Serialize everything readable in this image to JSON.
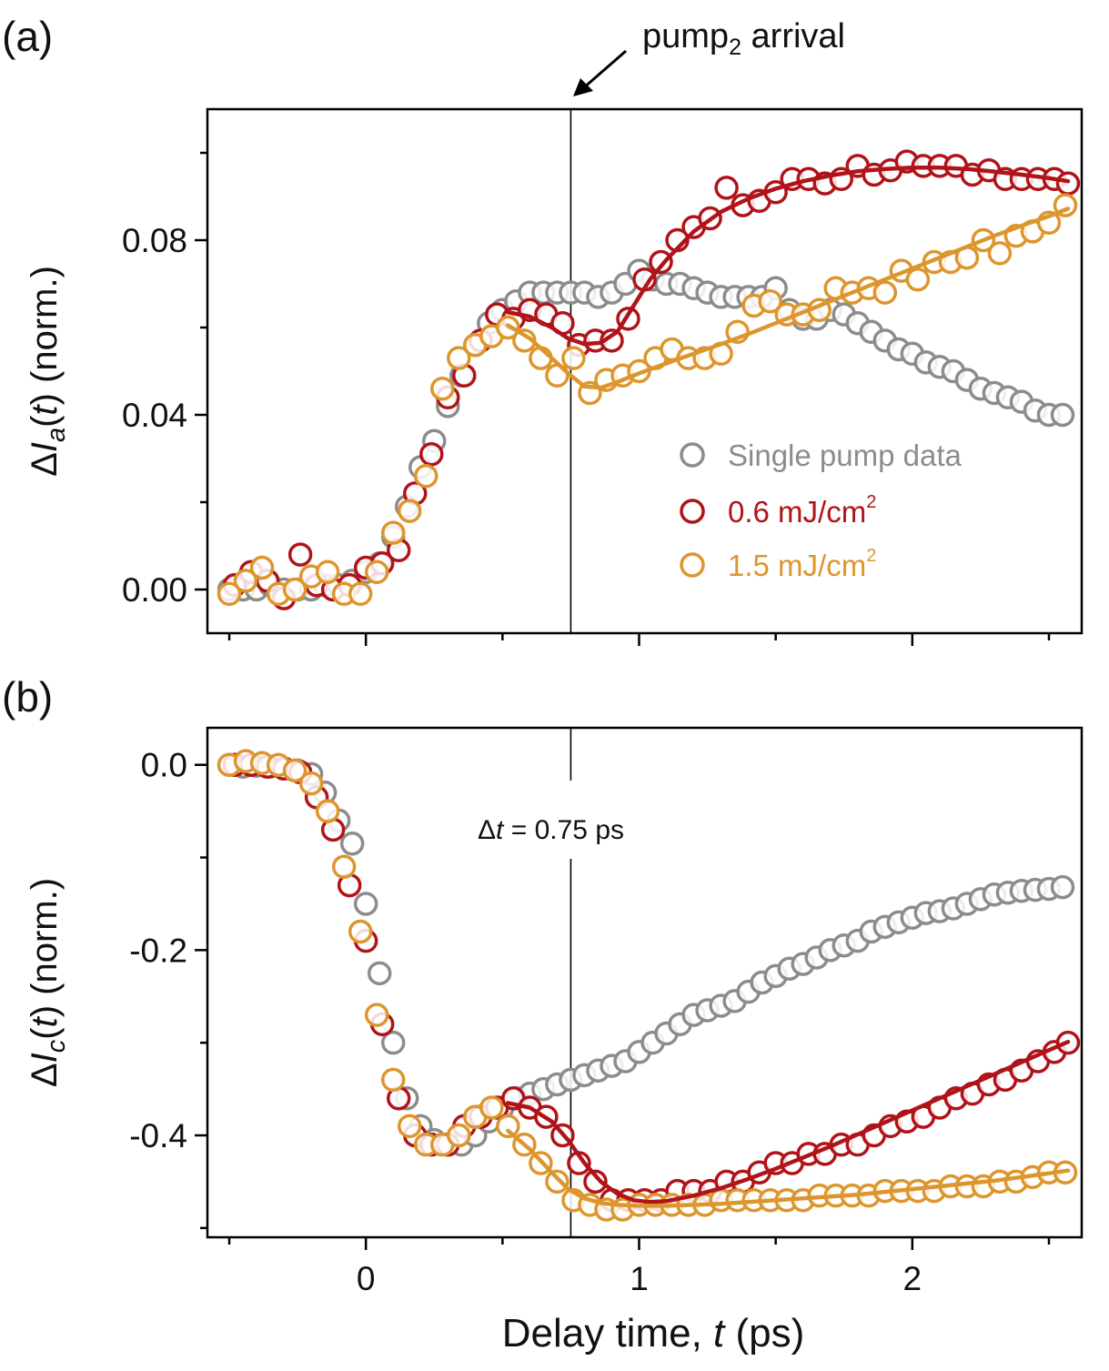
{
  "colors": {
    "single": "#8c8c8c",
    "low": "#b01318",
    "high": "#dc962d",
    "axis": "#000000"
  },
  "chart_data": [
    {
      "panel": "a",
      "type": "scatter",
      "panel_label": "(a)",
      "xlabel_prefix": "Delay time, ",
      "xlabel_var": "t",
      "xlabel_suffix": " (ps)",
      "ylabel_delta": "Δ",
      "ylabel_I": "I",
      "ylabel_sub": "a",
      "ylabel_arg_open": "(",
      "ylabel_arg_var": "t",
      "ylabel_arg_close": ")",
      "ylabel_suffix": " (norm.)",
      "xlim": [
        -0.58,
        2.62
      ],
      "ylim": [
        -0.01,
        0.11
      ],
      "yticks": [
        0.0,
        0.04,
        0.08
      ],
      "ytick_labels": [
        "0.00",
        "0.04",
        "0.08"
      ],
      "annotation": {
        "text": "pump",
        "sub": "2",
        "suffix": " arrival",
        "x": 0.75
      },
      "vline_x": 0.75,
      "legend": [
        {
          "label": "Single pump data",
          "color_key": "single"
        },
        {
          "label": "0.6 mJ/cm",
          "sup": "2",
          "color_key": "low"
        },
        {
          "label": "1.5 mJ/cm",
          "sup": "2",
          "color_key": "high"
        }
      ],
      "series": [
        {
          "name": "Single pump data",
          "color_key": "single",
          "x": [
            -0.5,
            -0.45,
            -0.4,
            -0.35,
            -0.3,
            -0.25,
            -0.2,
            -0.15,
            -0.1,
            -0.05,
            0.0,
            0.05,
            0.1,
            0.15,
            0.2,
            0.25,
            0.3,
            0.35,
            0.4,
            0.45,
            0.5,
            0.55,
            0.6,
            0.65,
            0.7,
            0.75,
            0.8,
            0.85,
            0.9,
            0.95,
            1.0,
            1.05,
            1.1,
            1.15,
            1.2,
            1.25,
            1.3,
            1.35,
            1.4,
            1.45,
            1.5,
            1.55,
            1.6,
            1.65,
            1.7,
            1.75,
            1.8,
            1.85,
            1.9,
            1.95,
            2.0,
            2.05,
            2.1,
            2.15,
            2.2,
            2.25,
            2.3,
            2.35,
            2.4,
            2.45,
            2.5,
            2.55
          ],
          "y": [
            0.0,
            0.0,
            0.0,
            0.001,
            0.0,
            0.0,
            0.0,
            0.001,
            0.001,
            0.002,
            0.004,
            0.006,
            0.012,
            0.019,
            0.028,
            0.034,
            0.042,
            0.049,
            0.056,
            0.061,
            0.064,
            0.066,
            0.068,
            0.068,
            0.068,
            0.068,
            0.068,
            0.067,
            0.068,
            0.07,
            0.073,
            0.071,
            0.07,
            0.07,
            0.069,
            0.068,
            0.067,
            0.067,
            0.067,
            0.067,
            0.069,
            0.064,
            0.062,
            0.062,
            0.064,
            0.063,
            0.061,
            0.059,
            0.057,
            0.055,
            0.054,
            0.052,
            0.051,
            0.05,
            0.048,
            0.046,
            0.045,
            0.044,
            0.043,
            0.041,
            0.04,
            0.04
          ]
        },
        {
          "name": "0.6 mJ/cm2",
          "color_key": "low",
          "x": [
            -0.48,
            -0.42,
            -0.36,
            -0.3,
            -0.24,
            -0.18,
            -0.12,
            -0.06,
            0.0,
            0.06,
            0.12,
            0.18,
            0.24,
            0.3,
            0.36,
            0.42,
            0.48,
            0.54,
            0.6,
            0.66,
            0.72,
            0.78,
            0.84,
            0.9,
            0.96,
            1.02,
            1.08,
            1.14,
            1.2,
            1.26,
            1.32,
            1.38,
            1.44,
            1.5,
            1.56,
            1.62,
            1.68,
            1.74,
            1.8,
            1.86,
            1.92,
            1.98,
            2.04,
            2.1,
            2.16,
            2.22,
            2.28,
            2.34,
            2.4,
            2.46,
            2.52,
            2.57
          ],
          "y": [
            0.001,
            0.004,
            0.002,
            -0.002,
            0.008,
            0.001,
            0.0,
            0.001,
            0.005,
            0.006,
            0.009,
            0.022,
            0.031,
            0.044,
            0.049,
            0.057,
            0.063,
            0.062,
            0.064,
            0.063,
            0.061,
            0.056,
            0.057,
            0.057,
            0.062,
            0.071,
            0.075,
            0.08,
            0.083,
            0.085,
            0.092,
            0.088,
            0.089,
            0.091,
            0.094,
            0.094,
            0.093,
            0.094,
            0.097,
            0.095,
            0.096,
            0.098,
            0.097,
            0.097,
            0.097,
            0.095,
            0.096,
            0.094,
            0.094,
            0.094,
            0.094,
            0.093
          ]
        },
        {
          "name": "1.5 mJ/cm2",
          "color_key": "high",
          "x": [
            -0.5,
            -0.44,
            -0.38,
            -0.32,
            -0.26,
            -0.2,
            -0.14,
            -0.08,
            -0.02,
            0.04,
            0.1,
            0.16,
            0.22,
            0.28,
            0.34,
            0.4,
            0.46,
            0.52,
            0.58,
            0.64,
            0.7,
            0.76,
            0.82,
            0.88,
            0.94,
            1.0,
            1.06,
            1.12,
            1.18,
            1.24,
            1.3,
            1.36,
            1.42,
            1.48,
            1.54,
            1.6,
            1.66,
            1.72,
            1.78,
            1.84,
            1.9,
            1.96,
            2.02,
            2.08,
            2.14,
            2.2,
            2.26,
            2.32,
            2.38,
            2.44,
            2.5,
            2.56
          ],
          "y": [
            -0.001,
            0.002,
            0.005,
            -0.001,
            0.0,
            0.003,
            0.004,
            -0.001,
            -0.001,
            0.004,
            0.013,
            0.018,
            0.026,
            0.046,
            0.053,
            0.056,
            0.058,
            0.06,
            0.057,
            0.053,
            0.049,
            0.053,
            0.045,
            0.048,
            0.049,
            0.05,
            0.053,
            0.055,
            0.053,
            0.053,
            0.054,
            0.059,
            0.065,
            0.066,
            0.063,
            0.063,
            0.064,
            0.069,
            0.068,
            0.069,
            0.068,
            0.073,
            0.071,
            0.075,
            0.075,
            0.076,
            0.08,
            0.077,
            0.081,
            0.082,
            0.084,
            0.088
          ]
        }
      ],
      "fits": [
        {
          "name": "0.6 mJ/cm2 fit",
          "color_key": "low",
          "x": [
            0.52,
            0.6,
            0.68,
            0.74,
            0.8,
            0.86,
            0.92,
            0.98,
            1.04,
            1.1,
            1.2,
            1.3,
            1.4,
            1.5,
            1.6,
            1.7,
            1.8,
            1.9,
            2.0,
            2.1,
            2.2,
            2.3,
            2.4,
            2.5,
            2.57
          ],
          "y": [
            0.0635,
            0.0625,
            0.06,
            0.0575,
            0.0562,
            0.0565,
            0.059,
            0.065,
            0.071,
            0.0755,
            0.082,
            0.0865,
            0.0895,
            0.0918,
            0.0935,
            0.0948,
            0.0958,
            0.0963,
            0.0966,
            0.0966,
            0.0963,
            0.0957,
            0.095,
            0.0942,
            0.0935
          ]
        },
        {
          "name": "1.5 mJ/cm2 fit",
          "color_key": "high",
          "x": [
            0.52,
            0.6,
            0.68,
            0.74,
            0.8,
            0.86,
            0.92,
            1.0,
            1.1,
            1.2,
            1.3,
            1.4,
            1.5,
            1.6,
            1.7,
            1.8,
            1.9,
            2.0,
            2.1,
            2.2,
            2.3,
            2.4,
            2.5,
            2.57
          ],
          "y": [
            0.0605,
            0.0575,
            0.053,
            0.0495,
            0.0465,
            0.0462,
            0.0475,
            0.0495,
            0.0518,
            0.054,
            0.0562,
            0.0585,
            0.061,
            0.0635,
            0.066,
            0.0685,
            0.071,
            0.0735,
            0.076,
            0.0785,
            0.081,
            0.0833,
            0.0855,
            0.0872
          ]
        }
      ]
    },
    {
      "panel": "b",
      "type": "scatter",
      "panel_label": "(b)",
      "ylabel_delta": "Δ",
      "ylabel_I": "I",
      "ylabel_sub": "c",
      "ylabel_arg_open": "(",
      "ylabel_arg_var": "t",
      "ylabel_arg_close": ")",
      "ylabel_suffix": " (norm.)",
      "xlim": [
        -0.58,
        2.62
      ],
      "ylim": [
        -0.51,
        0.04
      ],
      "yticks": [
        0.0,
        -0.2,
        -0.4
      ],
      "ytick_labels": [
        "0.0",
        "-0.2",
        "-0.4"
      ],
      "xticks": [
        0,
        1,
        2
      ],
      "xtick_labels": [
        "0",
        "1",
        "2"
      ],
      "annotation": {
        "delta": "Δ",
        "var": "t",
        "eq": " = ",
        "value": "0.75",
        "unit": " ps"
      },
      "vline_x": 0.75,
      "series": [
        {
          "name": "Single pump data",
          "color_key": "single",
          "x": [
            -0.5,
            -0.45,
            -0.4,
            -0.35,
            -0.3,
            -0.25,
            -0.2,
            -0.15,
            -0.1,
            -0.05,
            0.0,
            0.05,
            0.1,
            0.15,
            0.2,
            0.25,
            0.3,
            0.35,
            0.4,
            0.45,
            0.5,
            0.55,
            0.6,
            0.65,
            0.7,
            0.75,
            0.8,
            0.85,
            0.9,
            0.95,
            1.0,
            1.05,
            1.1,
            1.15,
            1.2,
            1.25,
            1.3,
            1.35,
            1.4,
            1.45,
            1.5,
            1.55,
            1.6,
            1.65,
            1.7,
            1.75,
            1.8,
            1.85,
            1.9,
            1.95,
            2.0,
            2.05,
            2.1,
            2.15,
            2.2,
            2.25,
            2.3,
            2.35,
            2.4,
            2.45,
            2.5,
            2.55
          ],
          "y": [
            0.0,
            -0.002,
            -0.001,
            -0.002,
            -0.004,
            -0.006,
            -0.01,
            -0.03,
            -0.06,
            -0.085,
            -0.15,
            -0.225,
            -0.3,
            -0.36,
            -0.39,
            -0.405,
            -0.41,
            -0.41,
            -0.4,
            -0.385,
            -0.37,
            -0.36,
            -0.355,
            -0.35,
            -0.345,
            -0.34,
            -0.335,
            -0.33,
            -0.325,
            -0.32,
            -0.31,
            -0.3,
            -0.29,
            -0.28,
            -0.27,
            -0.265,
            -0.26,
            -0.255,
            -0.245,
            -0.235,
            -0.228,
            -0.22,
            -0.215,
            -0.208,
            -0.2,
            -0.195,
            -0.19,
            -0.18,
            -0.175,
            -0.17,
            -0.165,
            -0.16,
            -0.158,
            -0.155,
            -0.15,
            -0.145,
            -0.14,
            -0.138,
            -0.136,
            -0.135,
            -0.134,
            -0.132
          ]
        },
        {
          "name": "0.6 mJ/cm2",
          "color_key": "low",
          "x": [
            -0.48,
            -0.42,
            -0.36,
            -0.3,
            -0.24,
            -0.18,
            -0.12,
            -0.06,
            0.0,
            0.06,
            0.12,
            0.18,
            0.24,
            0.3,
            0.36,
            0.42,
            0.48,
            0.54,
            0.6,
            0.66,
            0.72,
            0.78,
            0.84,
            0.9,
            0.96,
            1.02,
            1.08,
            1.14,
            1.2,
            1.26,
            1.32,
            1.38,
            1.44,
            1.5,
            1.56,
            1.62,
            1.68,
            1.74,
            1.8,
            1.86,
            1.92,
            1.98,
            2.04,
            2.1,
            2.16,
            2.22,
            2.28,
            2.34,
            2.4,
            2.46,
            2.52,
            2.57
          ],
          "y": [
            0.0,
            0.0,
            -0.002,
            -0.004,
            -0.008,
            -0.035,
            -0.07,
            -0.13,
            -0.19,
            -0.28,
            -0.36,
            -0.4,
            -0.41,
            -0.41,
            -0.39,
            -0.38,
            -0.37,
            -0.36,
            -0.37,
            -0.38,
            -0.4,
            -0.43,
            -0.45,
            -0.47,
            -0.47,
            -0.47,
            -0.47,
            -0.46,
            -0.46,
            -0.46,
            -0.45,
            -0.45,
            -0.44,
            -0.43,
            -0.43,
            -0.42,
            -0.42,
            -0.41,
            -0.41,
            -0.4,
            -0.39,
            -0.385,
            -0.38,
            -0.37,
            -0.36,
            -0.355,
            -0.345,
            -0.34,
            -0.33,
            -0.32,
            -0.31,
            -0.3
          ]
        },
        {
          "name": "1.5 mJ/cm2",
          "color_key": "high",
          "x": [
            -0.5,
            -0.44,
            -0.38,
            -0.32,
            -0.26,
            -0.2,
            -0.14,
            -0.08,
            -0.02,
            0.04,
            0.1,
            0.16,
            0.22,
            0.28,
            0.34,
            0.4,
            0.46,
            0.52,
            0.58,
            0.64,
            0.7,
            0.76,
            0.82,
            0.88,
            0.94,
            1.0,
            1.06,
            1.12,
            1.18,
            1.24,
            1.3,
            1.36,
            1.42,
            1.48,
            1.54,
            1.6,
            1.66,
            1.72,
            1.78,
            1.84,
            1.9,
            1.96,
            2.02,
            2.08,
            2.14,
            2.2,
            2.26,
            2.32,
            2.38,
            2.44,
            2.5,
            2.56
          ],
          "y": [
            0.0,
            0.004,
            0.002,
            0.0,
            -0.006,
            -0.02,
            -0.05,
            -0.11,
            -0.18,
            -0.27,
            -0.34,
            -0.39,
            -0.41,
            -0.41,
            -0.4,
            -0.38,
            -0.37,
            -0.39,
            -0.41,
            -0.43,
            -0.45,
            -0.47,
            -0.475,
            -0.48,
            -0.48,
            -0.475,
            -0.475,
            -0.475,
            -0.475,
            -0.475,
            -0.47,
            -0.47,
            -0.47,
            -0.47,
            -0.47,
            -0.47,
            -0.465,
            -0.465,
            -0.465,
            -0.465,
            -0.46,
            -0.46,
            -0.46,
            -0.46,
            -0.455,
            -0.455,
            -0.455,
            -0.45,
            -0.45,
            -0.445,
            -0.44,
            -0.44
          ]
        }
      ],
      "fits": [
        {
          "name": "0.6 mJ/cm2 fit",
          "color_key": "low",
          "x": [
            0.52,
            0.6,
            0.68,
            0.74,
            0.8,
            0.86,
            0.92,
            0.98,
            1.04,
            1.1,
            1.2,
            1.3,
            1.4,
            1.5,
            1.6,
            1.7,
            1.8,
            1.9,
            2.0,
            2.1,
            2.2,
            2.3,
            2.4,
            2.5,
            2.57
          ],
          "y": [
            -0.365,
            -0.37,
            -0.385,
            -0.405,
            -0.43,
            -0.45,
            -0.463,
            -0.47,
            -0.472,
            -0.471,
            -0.465,
            -0.457,
            -0.447,
            -0.436,
            -0.424,
            -0.412,
            -0.399,
            -0.386,
            -0.373,
            -0.36,
            -0.347,
            -0.334,
            -0.321,
            -0.308,
            -0.299
          ]
        },
        {
          "name": "1.5 mJ/cm2 fit",
          "color_key": "high",
          "x": [
            0.52,
            0.6,
            0.68,
            0.74,
            0.8,
            0.86,
            0.92,
            1.0,
            1.1,
            1.2,
            1.3,
            1.4,
            1.5,
            1.6,
            1.7,
            1.8,
            1.9,
            2.0,
            2.1,
            2.2,
            2.3,
            2.4,
            2.5,
            2.57
          ],
          "y": [
            -0.395,
            -0.415,
            -0.44,
            -0.458,
            -0.468,
            -0.473,
            -0.475,
            -0.476,
            -0.476,
            -0.475,
            -0.474,
            -0.472,
            -0.47,
            -0.468,
            -0.466,
            -0.464,
            -0.461,
            -0.458,
            -0.455,
            -0.452,
            -0.449,
            -0.445,
            -0.441,
            -0.438
          ]
        }
      ]
    }
  ]
}
